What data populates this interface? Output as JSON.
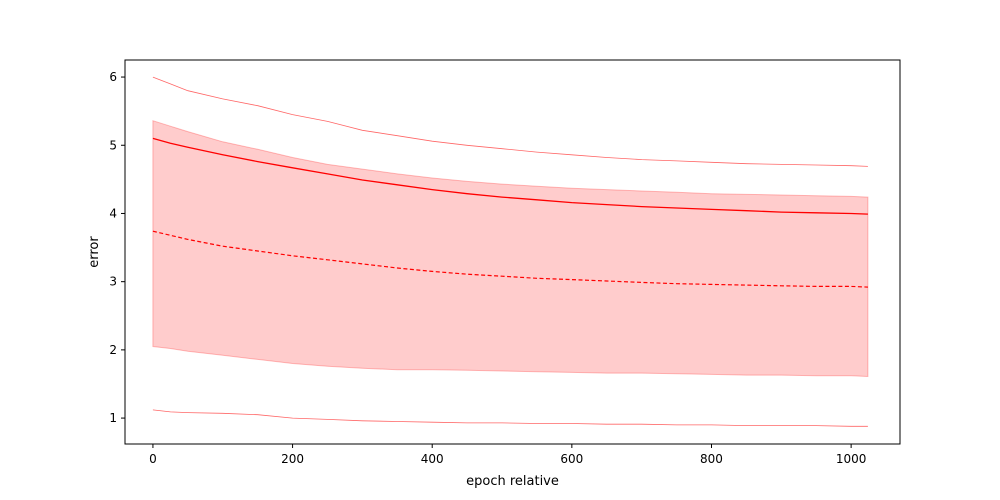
{
  "chart_data": {
    "type": "line",
    "title": "",
    "xlabel": "epoch relative",
    "ylabel": "error",
    "xlim": [
      -40,
      1070
    ],
    "ylim": [
      0.62,
      6.25
    ],
    "xticks": [
      0,
      200,
      400,
      600,
      800,
      1000
    ],
    "yticks": [
      1,
      2,
      3,
      4,
      5,
      6
    ],
    "grid": false,
    "color": "#ff0000",
    "band_fill": "#ffcccc",
    "series": [
      {
        "role": "upper-envelope",
        "style": "thin",
        "x": [
          0,
          25,
          50,
          100,
          150,
          200,
          250,
          300,
          350,
          400,
          450,
          500,
          550,
          600,
          650,
          700,
          750,
          800,
          850,
          900,
          950,
          1000,
          1024
        ],
        "y": [
          6.0,
          5.9,
          5.8,
          5.68,
          5.58,
          5.45,
          5.35,
          5.22,
          5.14,
          5.06,
          5.0,
          4.95,
          4.9,
          4.86,
          4.82,
          4.79,
          4.77,
          4.75,
          4.73,
          4.72,
          4.71,
          4.7,
          4.69
        ]
      },
      {
        "role": "band-upper",
        "style": "fill-edge",
        "x": [
          0,
          25,
          50,
          100,
          150,
          200,
          250,
          300,
          350,
          400,
          450,
          500,
          550,
          600,
          650,
          700,
          750,
          800,
          850,
          900,
          950,
          1000,
          1024
        ],
        "y": [
          5.36,
          5.28,
          5.2,
          5.05,
          4.94,
          4.82,
          4.72,
          4.65,
          4.58,
          4.52,
          4.47,
          4.43,
          4.4,
          4.37,
          4.35,
          4.33,
          4.31,
          4.29,
          4.28,
          4.27,
          4.26,
          4.25,
          4.24
        ]
      },
      {
        "role": "mean-upper",
        "style": "solid",
        "x": [
          0,
          25,
          50,
          100,
          150,
          200,
          250,
          300,
          350,
          400,
          450,
          500,
          550,
          600,
          650,
          700,
          750,
          800,
          850,
          900,
          950,
          1000,
          1024
        ],
        "y": [
          5.1,
          5.03,
          4.97,
          4.86,
          4.76,
          4.67,
          4.58,
          4.49,
          4.42,
          4.35,
          4.29,
          4.24,
          4.2,
          4.16,
          4.13,
          4.1,
          4.08,
          4.06,
          4.04,
          4.02,
          4.01,
          4.0,
          3.99
        ]
      },
      {
        "role": "median",
        "style": "dashed",
        "x": [
          0,
          25,
          50,
          100,
          150,
          200,
          250,
          300,
          350,
          400,
          450,
          500,
          550,
          600,
          650,
          700,
          750,
          800,
          850,
          900,
          950,
          1000,
          1024
        ],
        "y": [
          3.74,
          3.68,
          3.62,
          3.52,
          3.45,
          3.38,
          3.32,
          3.26,
          3.2,
          3.15,
          3.11,
          3.08,
          3.05,
          3.03,
          3.01,
          2.99,
          2.97,
          2.96,
          2.95,
          2.94,
          2.93,
          2.93,
          2.92
        ]
      },
      {
        "role": "band-lower",
        "style": "fill-edge",
        "x": [
          0,
          25,
          50,
          100,
          150,
          200,
          250,
          300,
          350,
          400,
          450,
          500,
          550,
          600,
          650,
          700,
          750,
          800,
          850,
          900,
          950,
          1000,
          1024
        ],
        "y": [
          2.05,
          2.02,
          1.98,
          1.92,
          1.86,
          1.8,
          1.76,
          1.73,
          1.71,
          1.71,
          1.7,
          1.69,
          1.68,
          1.67,
          1.66,
          1.66,
          1.65,
          1.64,
          1.63,
          1.63,
          1.62,
          1.62,
          1.61
        ]
      },
      {
        "role": "lower-envelope",
        "style": "thin",
        "x": [
          0,
          25,
          50,
          100,
          150,
          200,
          250,
          300,
          350,
          400,
          450,
          500,
          550,
          600,
          650,
          700,
          750,
          800,
          850,
          900,
          950,
          1000,
          1024
        ],
        "y": [
          1.12,
          1.09,
          1.08,
          1.07,
          1.05,
          1.0,
          0.98,
          0.96,
          0.95,
          0.94,
          0.93,
          0.93,
          0.92,
          0.92,
          0.91,
          0.91,
          0.9,
          0.9,
          0.89,
          0.89,
          0.89,
          0.88,
          0.88
        ]
      }
    ]
  }
}
